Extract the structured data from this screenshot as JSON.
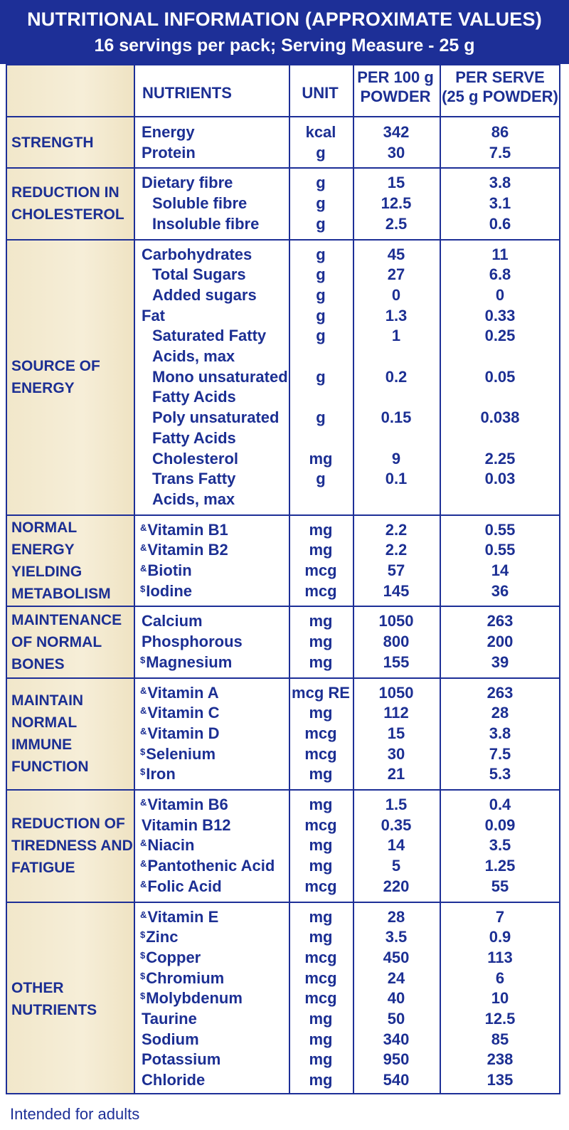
{
  "header": {
    "title": "NUTRITIONAL INFORMATION (APPROXIMATE VALUES)",
    "subtitle": "16 servings per pack; Serving Measure - 25 g"
  },
  "columns": {
    "nutrients": "NUTRIENTS",
    "unit": "UNIT",
    "per100_line1": "PER 100 g",
    "per100_line2": "POWDER",
    "perserve_line1": "PER SERVE",
    "perserve_line2": "(25 g POWDER)"
  },
  "sections": [
    {
      "label": [
        "STRENGTH"
      ],
      "rows": [
        {
          "mark": "",
          "name": "Energy",
          "unit": "kcal",
          "per100": "342",
          "perserve": "86"
        },
        {
          "mark": "",
          "name": "Protein",
          "unit": "g",
          "per100": "30",
          "perserve": "7.5"
        }
      ]
    },
    {
      "label": [
        "REDUCTION IN",
        "CHOLESTEROL"
      ],
      "rows": [
        {
          "mark": "",
          "name": "Dietary fibre",
          "unit": "g",
          "per100": "15",
          "perserve": "3.8"
        },
        {
          "mark": "",
          "name": "Soluble fibre",
          "indent": true,
          "unit": "g",
          "per100": "12.5",
          "perserve": "3.1"
        },
        {
          "mark": "",
          "name": "Insoluble fibre",
          "indent": true,
          "unit": "g",
          "per100": "2.5",
          "perserve": "0.6"
        }
      ]
    },
    {
      "label": [
        "SOURCE OF",
        "ENERGY"
      ],
      "rows": [
        {
          "mark": "",
          "name": "Carbohydrates",
          "unit": "g",
          "per100": "45",
          "perserve": "11"
        },
        {
          "mark": "",
          "name": "Total Sugars",
          "indent": true,
          "unit": "g",
          "per100": "27",
          "perserve": "6.8"
        },
        {
          "mark": "",
          "name": "Added sugars",
          "indent": true,
          "unit": "g",
          "per100": "0",
          "perserve": "0"
        },
        {
          "mark": "",
          "name": "Fat",
          "unit": "g",
          "per100": "1.3",
          "perserve": "0.33"
        },
        {
          "mark": "",
          "name": "Saturated Fatty",
          "indent": true,
          "unit": "g",
          "per100": "1",
          "perserve": "0.25"
        },
        {
          "mark": "",
          "name": "Acids, max",
          "indent": true,
          "unit": "",
          "per100": "",
          "perserve": ""
        },
        {
          "mark": "",
          "name": "Mono unsaturated",
          "indent": true,
          "unit": "g",
          "per100": "0.2",
          "perserve": "0.05"
        },
        {
          "mark": "",
          "name": "Fatty Acids",
          "indent": true,
          "unit": "",
          "per100": "",
          "perserve": ""
        },
        {
          "mark": "",
          "name": "Poly unsaturated",
          "indent": true,
          "unit": "g",
          "per100": "0.15",
          "perserve": "0.038"
        },
        {
          "mark": "",
          "name": "Fatty Acids",
          "indent": true,
          "unit": "",
          "per100": "",
          "perserve": ""
        },
        {
          "mark": "",
          "name": "Cholesterol",
          "indent": true,
          "unit": "mg",
          "per100": "9",
          "perserve": "2.25"
        },
        {
          "mark": "",
          "name": "Trans Fatty",
          "indent": true,
          "unit": "g",
          "per100": "0.1",
          "perserve": "0.03"
        },
        {
          "mark": "",
          "name": "Acids, max",
          "indent": true,
          "unit": "",
          "per100": "",
          "perserve": ""
        }
      ]
    },
    {
      "label": [
        "NORMAL ENERGY",
        "YIELDING",
        "METABOLISM"
      ],
      "rows": [
        {
          "mark": "&",
          "name": "Vitamin B1",
          "unit": "mg",
          "per100": "2.2",
          "perserve": "0.55"
        },
        {
          "mark": "&",
          "name": "Vitamin B2",
          "unit": "mg",
          "per100": "2.2",
          "perserve": "0.55"
        },
        {
          "mark": "&",
          "name": "Biotin",
          "unit": "mcg",
          "per100": "57",
          "perserve": "14"
        },
        {
          "mark": "$",
          "name": "Iodine",
          "unit": "mcg",
          "per100": "145",
          "perserve": "36"
        }
      ]
    },
    {
      "label": [
        "MAINTENANCE",
        "OF NORMAL BONES"
      ],
      "rows": [
        {
          "mark": "",
          "name": "Calcium",
          "unit": "mg",
          "per100": "1050",
          "perserve": "263"
        },
        {
          "mark": "",
          "name": "Phosphorous",
          "unit": "mg",
          "per100": "800",
          "perserve": "200"
        },
        {
          "mark": "$",
          "name": "Magnesium",
          "unit": "mg",
          "per100": "155",
          "perserve": "39"
        }
      ]
    },
    {
      "label": [
        "MAINTAIN",
        "NORMAL IMMUNE",
        "FUNCTION"
      ],
      "rows": [
        {
          "mark": "&",
          "name": "Vitamin A",
          "unit": "mcg RE",
          "per100": "1050",
          "perserve": "263"
        },
        {
          "mark": "&",
          "name": "Vitamin C",
          "unit": "mg",
          "per100": "112",
          "perserve": "28"
        },
        {
          "mark": "&",
          "name": "Vitamin D",
          "unit": "mcg",
          "per100": "15",
          "perserve": "3.8"
        },
        {
          "mark": "$",
          "name": "Selenium",
          "unit": "mcg",
          "per100": "30",
          "perserve": "7.5"
        },
        {
          "mark": "$",
          "name": "Iron",
          "unit": "mg",
          "per100": "21",
          "perserve": "5.3"
        }
      ]
    },
    {
      "label": [
        "REDUCTION OF",
        "TIREDNESS AND",
        "FATIGUE"
      ],
      "rows": [
        {
          "mark": "&",
          "name": "Vitamin B6",
          "unit": "mg",
          "per100": "1.5",
          "perserve": "0.4"
        },
        {
          "mark": "",
          "name": "Vitamin B12",
          "unit": "mcg",
          "per100": "0.35",
          "perserve": "0.09"
        },
        {
          "mark": "&",
          "name": "Niacin",
          "unit": "mg",
          "per100": "14",
          "perserve": "3.5"
        },
        {
          "mark": "&",
          "name": "Pantothenic Acid",
          "unit": "mg",
          "per100": "5",
          "perserve": "1.25"
        },
        {
          "mark": "&",
          "name": "Folic Acid",
          "unit": "mcg",
          "per100": "220",
          "perserve": "55"
        }
      ]
    },
    {
      "label": [
        "OTHER",
        "NUTRIENTS"
      ],
      "rows": [
        {
          "mark": "&",
          "name": "Vitamin E",
          "unit": "mg",
          "per100": "28",
          "perserve": "7"
        },
        {
          "mark": "$",
          "name": "Zinc",
          "unit": "mg",
          "per100": "3.5",
          "perserve": "0.9"
        },
        {
          "mark": "$",
          "name": "Copper",
          "unit": "mcg",
          "per100": "450",
          "perserve": "113"
        },
        {
          "mark": "$",
          "name": "Chromium",
          "unit": "mcg",
          "per100": "24",
          "perserve": "6"
        },
        {
          "mark": "$",
          "name": "Molybdenum",
          "unit": "mcg",
          "per100": "40",
          "perserve": "10"
        },
        {
          "mark": "",
          "name": "Taurine",
          "unit": "mg",
          "per100": "50",
          "perserve": "12.5"
        },
        {
          "mark": "",
          "name": "Sodium",
          "unit": "mg",
          "per100": "340",
          "perserve": "85"
        },
        {
          "mark": "",
          "name": "Potassium",
          "unit": "mg",
          "per100": "950",
          "perserve": "238"
        },
        {
          "mark": "",
          "name": "Chloride",
          "unit": "mg",
          "per100": "540",
          "perserve": "135"
        }
      ]
    }
  ],
  "footer": "Intended for adults"
}
